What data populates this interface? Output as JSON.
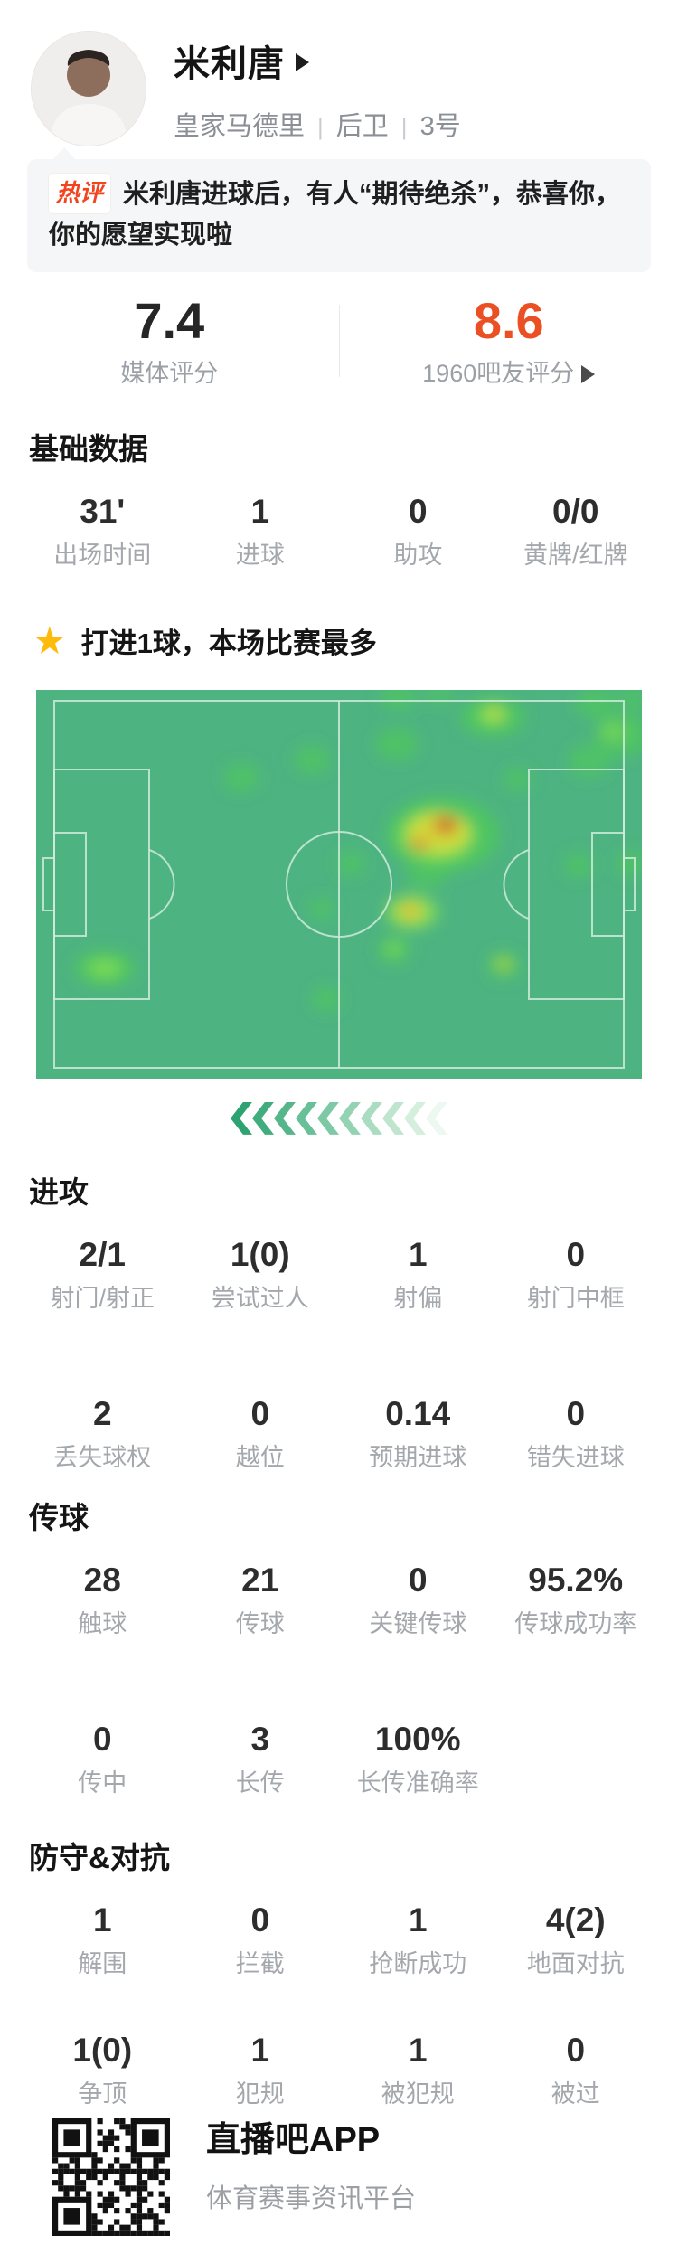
{
  "player": {
    "name": "米利唐",
    "team": "皇家马德里",
    "position": "后卫",
    "number": "3号",
    "separator": "|"
  },
  "hot_comment": {
    "badge": "热评",
    "text": "米利唐进球后，有人“期待绝杀”，恭喜你，你的愿望实现啦"
  },
  "ratings": {
    "media": {
      "value": "7.4",
      "label": "媒体评分"
    },
    "fans": {
      "value": "8.6",
      "label": "1960吧友评分",
      "accent_color": "#ea5023"
    }
  },
  "highlight": {
    "star_icon": "star-icon",
    "text": "打进1球，本场比赛最多"
  },
  "sections": {
    "basic": {
      "title": "基础数据",
      "rows": [
        [
          {
            "value": "31'",
            "label": "出场时间"
          },
          {
            "value": "1",
            "label": "进球"
          },
          {
            "value": "0",
            "label": "助攻"
          },
          {
            "value": "0/0",
            "label": "黄牌/红牌"
          }
        ]
      ]
    },
    "attack": {
      "title": "进攻",
      "rows": [
        [
          {
            "value": "2/1",
            "label": "射门/射正"
          },
          {
            "value": "1(0)",
            "label": "尝试过人"
          },
          {
            "value": "1",
            "label": "射偏"
          },
          {
            "value": "0",
            "label": "射门中框"
          }
        ],
        [
          {
            "value": "2",
            "label": "丢失球权"
          },
          {
            "value": "0",
            "label": "越位"
          },
          {
            "value": "0.14",
            "label": "预期进球"
          },
          {
            "value": "0",
            "label": "错失进球"
          }
        ]
      ]
    },
    "passing": {
      "title": "传球",
      "rows": [
        [
          {
            "value": "28",
            "label": "触球"
          },
          {
            "value": "21",
            "label": "传球"
          },
          {
            "value": "0",
            "label": "关键传球"
          },
          {
            "value": "95.2%",
            "label": "传球成功率"
          }
        ],
        [
          {
            "value": "0",
            "label": "传中"
          },
          {
            "value": "3",
            "label": "长传"
          },
          {
            "value": "100%",
            "label": "长传准确率"
          },
          {
            "value": "",
            "label": ""
          }
        ]
      ]
    },
    "defense": {
      "title": "防守&对抗",
      "rows": [
        [
          {
            "value": "1",
            "label": "解围"
          },
          {
            "value": "0",
            "label": "拦截"
          },
          {
            "value": "1",
            "label": "抢断成功"
          },
          {
            "value": "4(2)",
            "label": "地面对抗"
          }
        ],
        [
          {
            "value": "1(0)",
            "label": "争顶"
          },
          {
            "value": "1",
            "label": "犯规"
          },
          {
            "value": "1",
            "label": "被犯规"
          },
          {
            "value": "0",
            "label": "被过"
          }
        ]
      ]
    }
  },
  "heatmap": {
    "pitch_color": "#4db381",
    "line_color": "#cfeada",
    "palette": {
      "G": "#50c75e",
      "GL": "#7fdd55",
      "Y": "#d8de39",
      "O": "#dd9434",
      "R": "#c25a28"
    },
    "blobs": [
      [
        227,
        97,
        20,
        16,
        "G",
        0.7
      ],
      [
        305,
        77,
        20,
        16,
        "G",
        0.7
      ],
      [
        399,
        60,
        24,
        18,
        "G",
        0.75
      ],
      [
        401,
        8,
        20,
        14,
        "G",
        0.7
      ],
      [
        446,
        4,
        16,
        12,
        "G",
        0.6
      ],
      [
        619,
        15,
        22,
        16,
        "G",
        0.75
      ],
      [
        648,
        50,
        30,
        24,
        "G",
        0.8
      ],
      [
        612,
        78,
        24,
        18,
        "G",
        0.7
      ],
      [
        660,
        10,
        18,
        14,
        "G",
        0.6
      ],
      [
        638,
        46,
        14,
        10,
        "GL",
        0.7
      ],
      [
        532,
        99,
        16,
        13,
        "G",
        0.65
      ],
      [
        348,
        192,
        16,
        14,
        "G",
        0.7
      ],
      [
        316,
        242,
        14,
        12,
        "G",
        0.65
      ],
      [
        321,
        342,
        16,
        14,
        "G",
        0.7
      ],
      [
        396,
        288,
        18,
        16,
        "G",
        0.75
      ],
      [
        396,
        286,
        9,
        7,
        "GL",
        0.8
      ],
      [
        76,
        308,
        34,
        20,
        "G",
        0.85
      ],
      [
        76,
        308,
        18,
        10,
        "GL",
        0.9
      ],
      [
        600,
        194,
        16,
        14,
        "G",
        0.7
      ],
      [
        658,
        192,
        16,
        14,
        "G",
        0.7
      ],
      [
        517,
        305,
        18,
        15,
        "G",
        0.75
      ],
      [
        517,
        303,
        9,
        7,
        "Y",
        0.6
      ],
      [
        450,
        160,
        62,
        42,
        "G",
        0.9
      ],
      [
        443,
        162,
        42,
        28,
        "GL",
        0.85
      ],
      [
        445,
        158,
        34,
        22,
        "Y",
        0.9
      ],
      [
        452,
        150,
        15,
        11,
        "O",
        0.95
      ],
      [
        455,
        149,
        9,
        7,
        "R",
        0.9
      ],
      [
        424,
        170,
        11,
        8,
        "O",
        0.85
      ],
      [
        432,
        205,
        22,
        16,
        "G",
        0.7
      ],
      [
        416,
        246,
        30,
        20,
        "GL",
        0.8
      ],
      [
        414,
        245,
        16,
        11,
        "Y",
        0.9
      ],
      [
        413,
        244,
        8,
        6,
        "O",
        0.6
      ],
      [
        505,
        30,
        36,
        22,
        "G",
        0.85
      ],
      [
        505,
        28,
        16,
        11,
        "GL",
        0.9
      ],
      [
        507,
        26,
        9,
        7,
        "Y",
        0.7
      ]
    ],
    "direction_chevrons": {
      "count": 10,
      "colors": [
        "#2ea372",
        "#41ac7e",
        "#55b68b",
        "#69bf98",
        "#7ec9a5",
        "#93d2b3",
        "#a9dcc1",
        "#bfe5cf",
        "#d5efde",
        "#ecf8f0"
      ]
    }
  },
  "footer": {
    "app_name": "直播吧APP",
    "tagline": "体育赛事资讯平台"
  }
}
